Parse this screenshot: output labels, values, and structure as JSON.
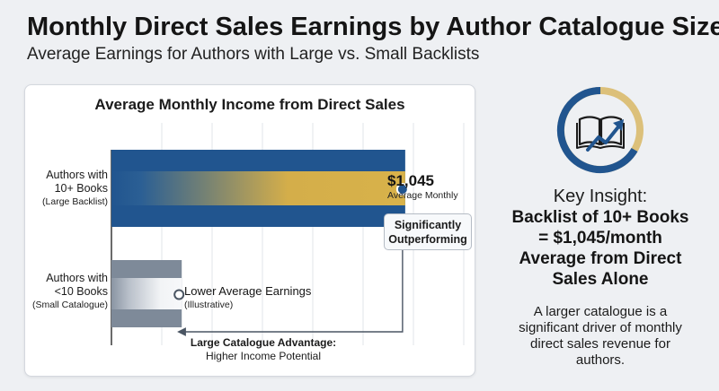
{
  "header": {
    "title": "Monthly Direct Sales Earnings by Author Catalogue Size",
    "subtitle": "Average Earnings for Authors with Large vs. Small Backlists"
  },
  "chart_data": {
    "type": "bar",
    "orientation": "horizontal",
    "title": "Average Monthly Income from Direct Sales",
    "categories": [
      {
        "line1": "Authors with",
        "line2": "10+ Books",
        "line3": "(Large Backlist)"
      },
      {
        "line1": "Authors with",
        "line2": "<10 Books",
        "line3": "(Small Catalogue)"
      }
    ],
    "values": [
      1045,
      250
    ],
    "value_notes": [
      "",
      "illustrative"
    ],
    "value_labels": [
      {
        "main": "$1,045",
        "sub": "Average Monthly"
      },
      {
        "main": "Lower Average Earnings",
        "sub": "(Illustrative)"
      }
    ],
    "xlim": [
      0,
      1250
    ],
    "gridlines": true,
    "colors": [
      "#21558f",
      "#d8b24a",
      "#7e8a99"
    ],
    "callout": {
      "line1": "Significantly",
      "line2": "Outperforming"
    },
    "annotation": {
      "line1": "Large Catalogue Advantage:",
      "line2": "Higher Income Potential"
    }
  },
  "insight": {
    "icon": "book-growth-icon",
    "heading": "Key Insight:",
    "body_lines": [
      "Backlist of 10+ Books",
      "= $1,045/month",
      "Average from Direct",
      "Sales Alone"
    ],
    "note_lines": [
      "A larger catalogue is a",
      "significant driver of monthly",
      "direct sales revenue for",
      "authors."
    ]
  }
}
